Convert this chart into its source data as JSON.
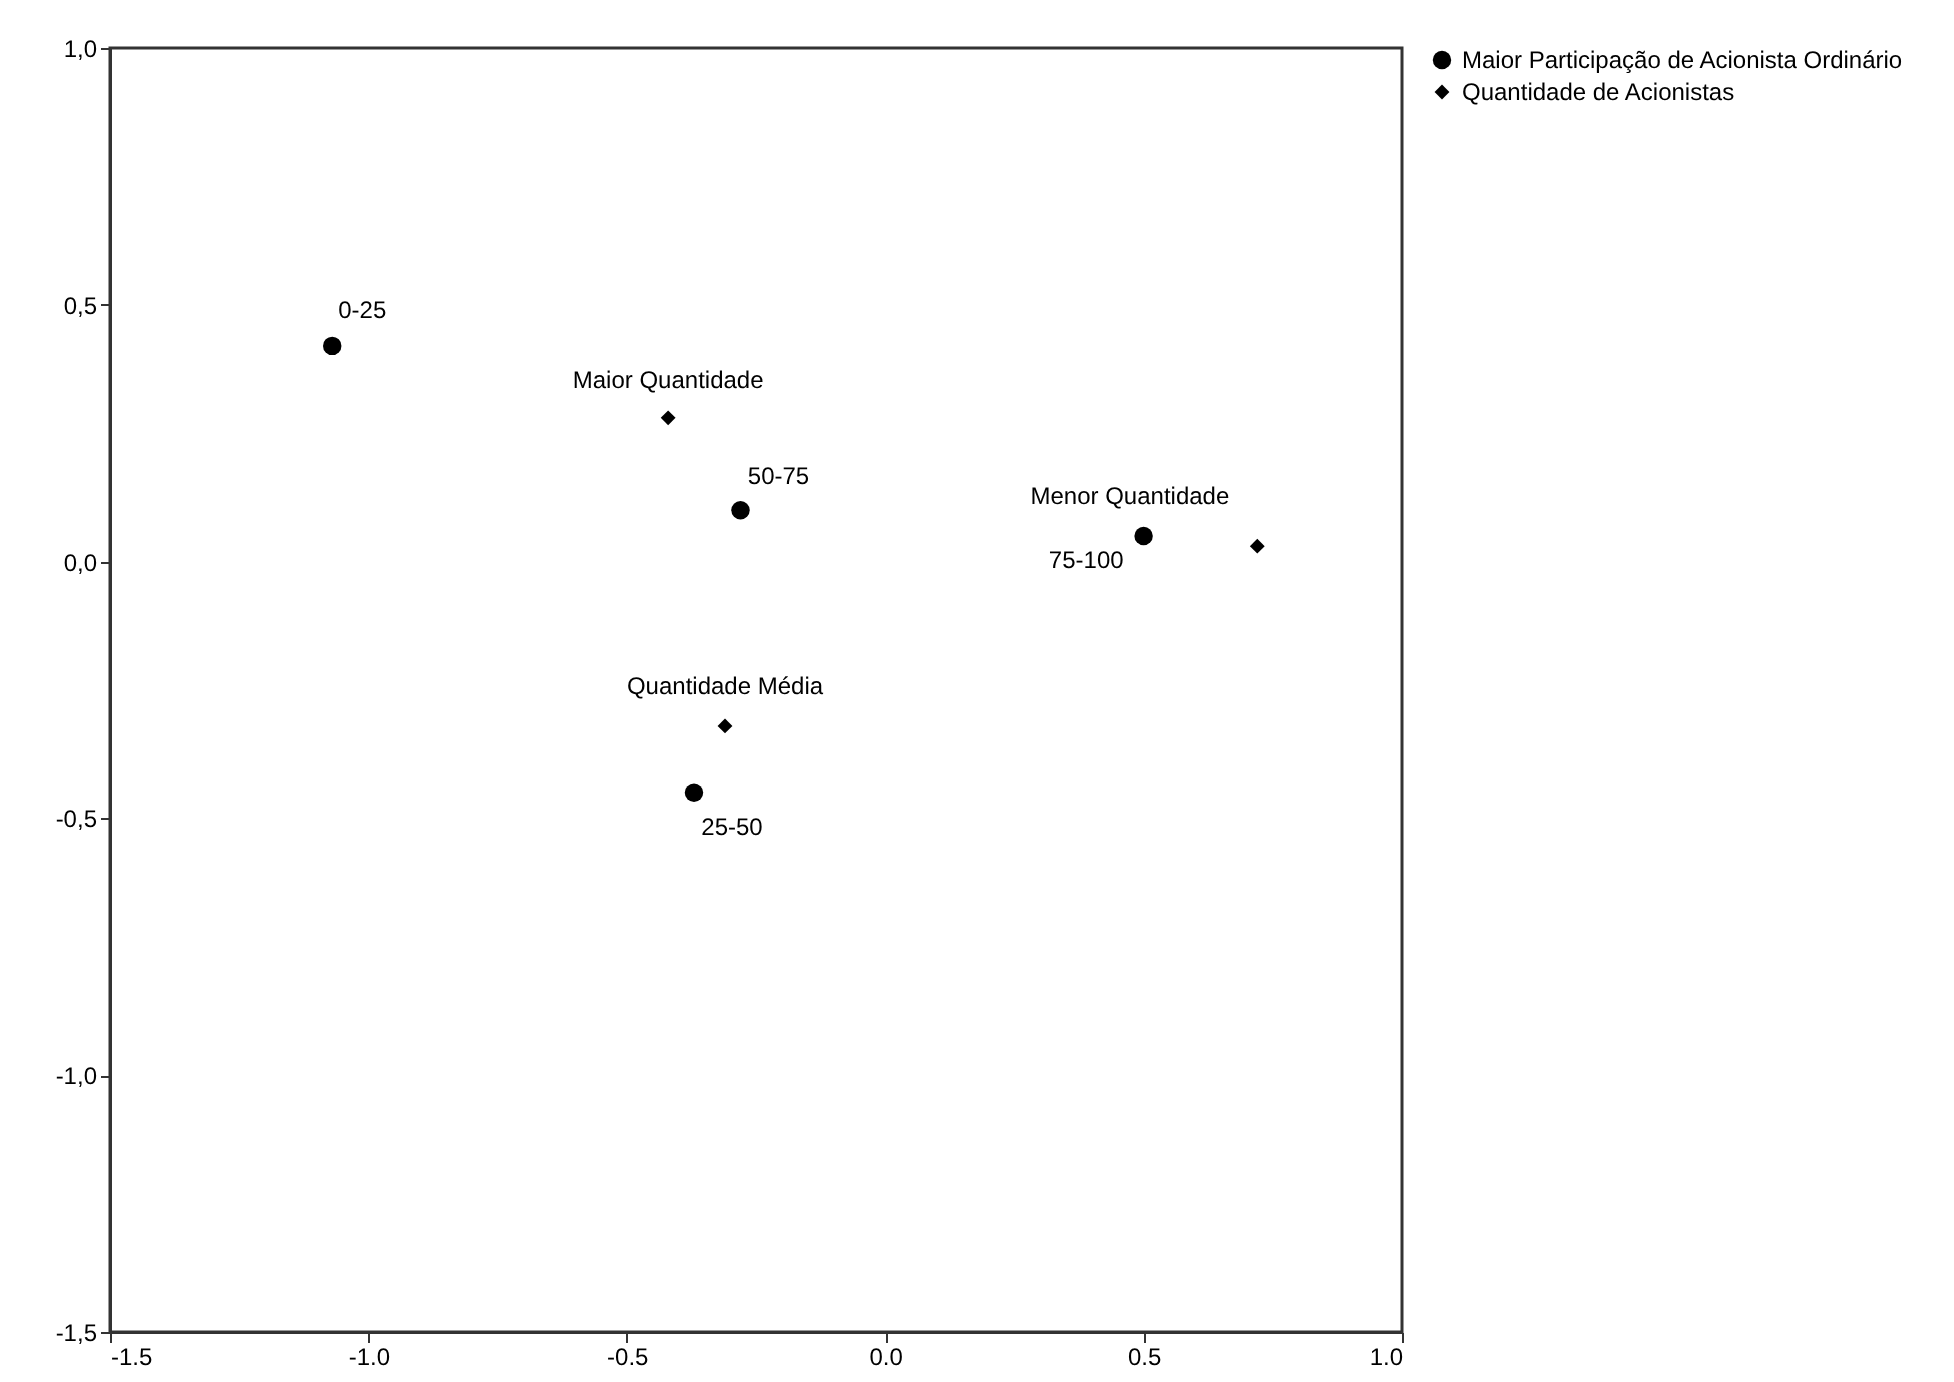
{
  "chart_data": {
    "type": "scatter",
    "series": [
      {
        "name": "Maior Participação de Acionista Ordinário",
        "color": "#000000",
        "marker": "circle",
        "x": [
          -1.07,
          -0.28,
          0.5,
          -0.37
        ],
        "values": [
          0.42,
          0.1,
          0.05,
          -0.45
        ]
      },
      {
        "name": "Quantidade de Acionistas",
        "color": "#000000",
        "marker": "diamond",
        "x": [
          -0.42,
          0.72,
          -0.31
        ],
        "values": [
          0.28,
          0.03,
          -0.32
        ]
      }
    ],
    "annotations": [
      {
        "text": "0-25",
        "x": -1.07,
        "y": 0.42
      },
      {
        "text": "50-75",
        "x": -0.28,
        "y": 0.1
      },
      {
        "text": "75-100",
        "x": 0.5,
        "y": 0.05
      },
      {
        "text": "25-50",
        "x": -0.37,
        "y": -0.45
      },
      {
        "text": "Maior Quantidade",
        "x": -0.42,
        "y": 0.28
      },
      {
        "text": "Menor Quantidade",
        "x": 0.72,
        "y": 0.03
      },
      {
        "text": "Quantidade Média",
        "x": -0.31,
        "y": -0.32
      }
    ],
    "xlim": [
      -1.5,
      1.0
    ],
    "xticks": [
      {
        "value": -1.5,
        "label": "-1.5"
      },
      {
        "value": -1.0,
        "label": "-1.0"
      },
      {
        "value": -0.5,
        "label": "-0.5"
      },
      {
        "value": 0,
        "label": "0.0"
      },
      {
        "value": 0.5,
        "label": "0.5"
      },
      {
        "value": 1.0,
        "label": "1.0"
      }
    ],
    "ylim": [
      -1.5,
      1.0
    ],
    "yticks": [
      {
        "value": -1.5,
        "label": "-1,5"
      },
      {
        "value": -1.0,
        "label": "-1,0"
      },
      {
        "value": -0.5,
        "label": "-0,5"
      },
      {
        "value": 0,
        "label": "0,0"
      },
      {
        "value": 0.5,
        "label": "0,5"
      },
      {
        "value": 1.0,
        "label": "1,0"
      }
    ],
    "legend": "top right",
    "grid": false
  }
}
